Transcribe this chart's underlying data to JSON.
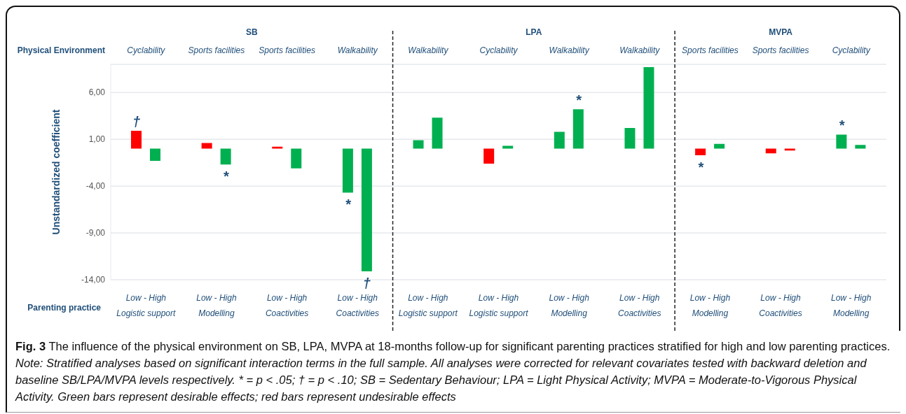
{
  "chart_data": {
    "type": "bar",
    "ylabel": "Unstandardized coefficient",
    "categories": [
      "Low - High\nLogistic support",
      "Low - High\nModelling",
      "Low - High\nCoactivities",
      "Low - High\nCoactivities",
      "Low - High\nLogistic support",
      "Low - High\nLogistic support",
      "Low - High\nModelling",
      "Low - High\nCoactivities",
      "Low - High\nModelling",
      "Low - High\nCoactivities",
      "Low - High\nModelling"
    ],
    "series": [
      {
        "values": [
          1.9,
          0.6,
          0.2,
          -4.7,
          0.9,
          -1.6,
          1.8,
          2.2,
          -0.7,
          -0.5,
          1.5
        ],
        "colors": [
          "#ff0000",
          "#ff0000",
          "#ff0000",
          "#00b050",
          "#00b050",
          "#ff0000",
          "#00b050",
          "#00b050",
          "#ff0000",
          "#ff0000",
          "#00b050"
        ],
        "value_labels": [
          "†",
          null,
          null,
          "*",
          null,
          null,
          null,
          null,
          "*",
          null,
          "*"
        ]
      },
      {
        "values": [
          -1.3,
          -1.7,
          -2.1,
          -13.1,
          3.3,
          0.3,
          4.2,
          8.7,
          0.5,
          -0.2,
          0.4
        ],
        "colors": [
          "#00b050",
          "#00b050",
          "#00b050",
          "#00b050",
          "#00b050",
          "#00b050",
          "#00b050",
          "#00b050",
          "#00b050",
          "#ff0000",
          "#00b050"
        ],
        "value_labels": [
          null,
          "*",
          null,
          "†",
          null,
          null,
          "*",
          null,
          null,
          null,
          null
        ]
      }
    ],
    "ylim": [
      -14,
      9
    ],
    "yticks": [
      {
        "value": 6,
        "label": "6,00"
      },
      {
        "value": 1,
        "label": "1,00"
      },
      {
        "value": -4,
        "label": "-4,00"
      },
      {
        "value": -9,
        "label": "-9,00"
      },
      {
        "value": -14,
        "label": "-14,00"
      }
    ],
    "grid": "y",
    "annotations": [
      "Cyclability",
      "Sports facilities",
      "Sports facilities",
      "Walkability",
      "Walkability",
      "Cyclability",
      "Walkability",
      "Walkability",
      "Sports facilities",
      "Sports facilities",
      "Cyclability",
      "SB",
      "LPA",
      "MVPA",
      "Physical Environment",
      "Parenting practice",
      "Fig. 3",
      "The influence of the physical environment on SB, LPA, MVPA at 18-months follow-up for significant parenting practices stratified for high and low parenting practices.",
      "Note: Stratified analyses based on significant interaction terms in the full sample. All analyses were corrected for relevant covariates tested with backward deletion and baseline SB/LPA/MVPA levels respectively. * = p < .05; † = p < .10; SB = Sedentary Behaviour; LPA = Light Physical Activity; MVPA = Moderate-to-Vigorous Physical Activity. Green bars represent desirable effects; red bars represent undesirable effects"
    ]
  }
}
